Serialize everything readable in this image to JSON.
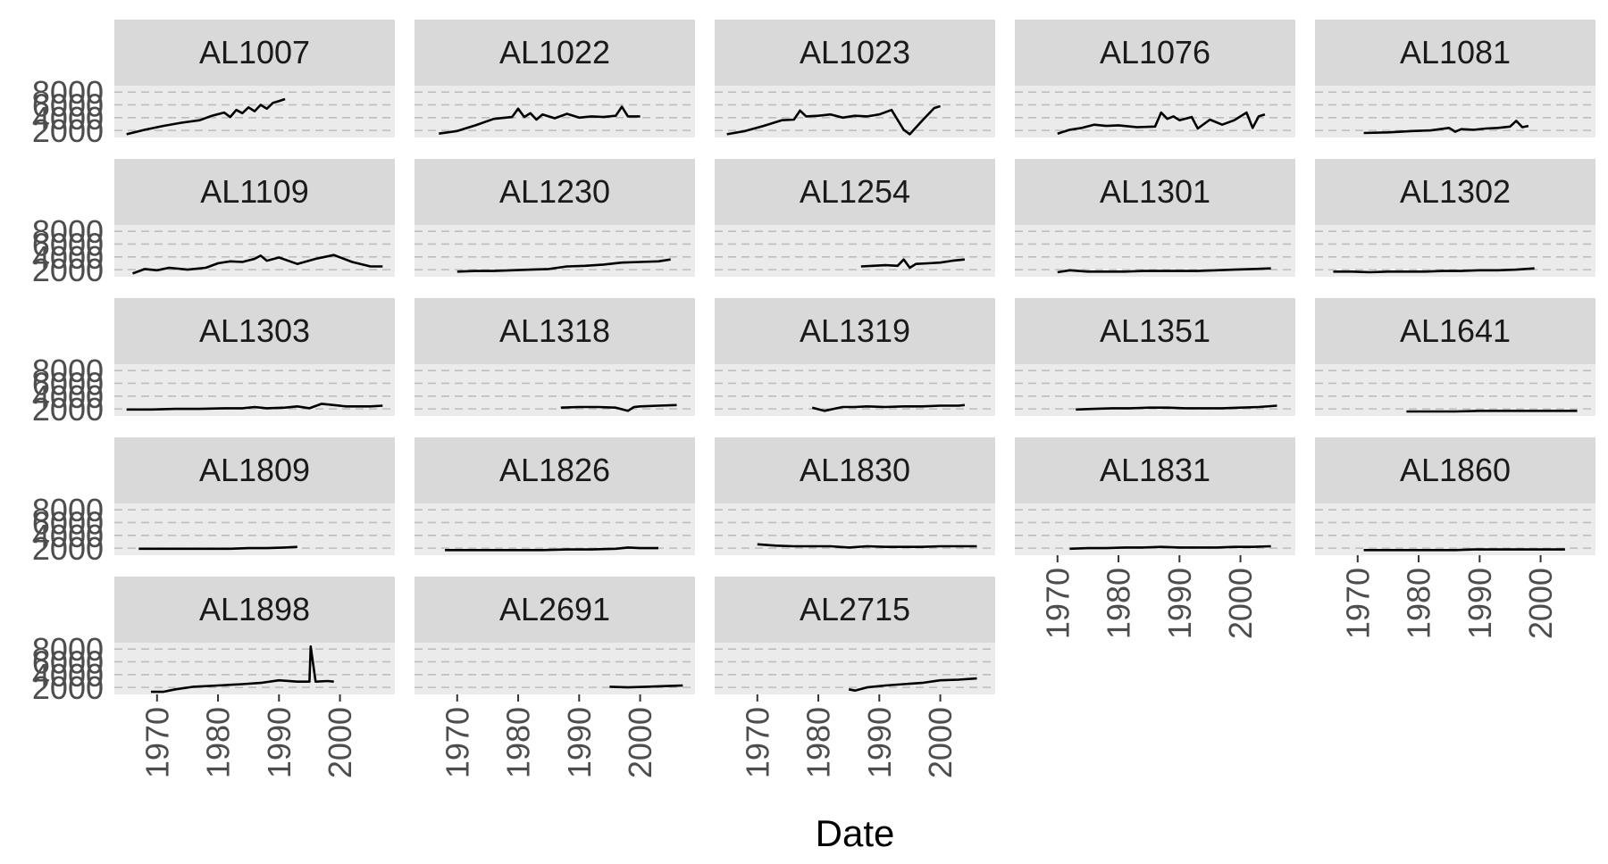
{
  "chart_data": {
    "type": "line",
    "facet_layout": {
      "rows": 5,
      "cols": 5
    },
    "xlabel": "Date",
    "ylabel": "",
    "xlim": [
      1963,
      2009
    ],
    "ylim": [
      900,
      9000
    ],
    "x_ticks": [
      1970,
      1980,
      1990,
      2000
    ],
    "y_ticks": [
      2000,
      4000,
      6000,
      8000
    ],
    "y_tick_labels": [
      "2000",
      "4000",
      "6000",
      "8000"
    ],
    "grid": true,
    "grid_style": "dashed",
    "line_color": "#000000",
    "panel_background": "#ebebeb",
    "strip_background": "#d9d9d9",
    "panels": [
      {
        "name": "AL1007",
        "x": [
          1965,
          1968,
          1971,
          1974,
          1977,
          1979,
          1981,
          1982,
          1983,
          1984,
          1985,
          1986,
          1987,
          1988,
          1989,
          1990,
          1991
        ],
        "y": [
          1400,
          2100,
          2700,
          3200,
          3600,
          4300,
          4800,
          4100,
          5200,
          4700,
          5600,
          5000,
          6000,
          5400,
          6300,
          6600,
          6900
        ]
      },
      {
        "name": "AL1022",
        "x": [
          1967,
          1970,
          1973,
          1976,
          1979,
          1980,
          1981,
          1982,
          1983,
          1984,
          1986,
          1988,
          1990,
          1992,
          1994,
          1996,
          1997,
          1998,
          2000
        ],
        "y": [
          1500,
          1900,
          2800,
          3800,
          4100,
          5400,
          4100,
          4700,
          3700,
          4500,
          3900,
          4600,
          4000,
          4200,
          4100,
          4300,
          5700,
          4200,
          4200
        ]
      },
      {
        "name": "AL1023",
        "x": [
          1965,
          1968,
          1971,
          1974,
          1976,
          1977,
          1978,
          1980,
          1982,
          1984,
          1986,
          1988,
          1990,
          1992,
          1994,
          1995,
          1997,
          1999,
          2000
        ],
        "y": [
          1400,
          1900,
          2700,
          3600,
          3700,
          5100,
          4200,
          4300,
          4500,
          4000,
          4300,
          4200,
          4500,
          5200,
          2100,
          1400,
          3500,
          5500,
          5800
        ]
      },
      {
        "name": "AL1076",
        "x": [
          1970,
          1972,
          1974,
          1976,
          1978,
          1980,
          1983,
          1986,
          1987,
          1988,
          1989,
          1990,
          1992,
          1993,
          1995,
          1997,
          1999,
          2001,
          2002,
          2003,
          2004
        ],
        "y": [
          1500,
          2100,
          2400,
          2900,
          2700,
          2800,
          2500,
          2600,
          4800,
          3800,
          4200,
          3600,
          4100,
          2300,
          3700,
          2900,
          3600,
          4800,
          2400,
          4200,
          4500
        ]
      },
      {
        "name": "AL1081",
        "x": [
          1971,
          1975,
          1979,
          1982,
          1985,
          1986,
          1987,
          1989,
          1991,
          1993,
          1995,
          1996,
          1997,
          1998
        ],
        "y": [
          1600,
          1700,
          1900,
          2000,
          2400,
          1800,
          2200,
          2100,
          2300,
          2400,
          2600,
          3500,
          2500,
          2700
        ]
      },
      {
        "name": "AL1109",
        "x": [
          1966,
          1968,
          1970,
          1972,
          1975,
          1978,
          1980,
          1982,
          1984,
          1986,
          1987,
          1988,
          1990,
          1993,
          1996,
          1999,
          2002,
          2005,
          2007
        ],
        "y": [
          1400,
          2100,
          1900,
          2300,
          2000,
          2300,
          3000,
          3300,
          3200,
          3700,
          4200,
          3400,
          3900,
          2900,
          3700,
          4300,
          3200,
          2500,
          2500
        ]
      },
      {
        "name": "AL1230",
        "x": [
          1970,
          1973,
          1976,
          1979,
          1982,
          1985,
          1988,
          1991,
          1994,
          1997,
          2000,
          2003,
          2005
        ],
        "y": [
          1700,
          1800,
          1800,
          1900,
          2000,
          2100,
          2500,
          2600,
          2800,
          3100,
          3200,
          3300,
          3600
        ]
      },
      {
        "name": "AL1254",
        "x": [
          1987,
          1989,
          1991,
          1993,
          1994,
          1995,
          1996,
          1998,
          2000,
          2002,
          2004
        ],
        "y": [
          2500,
          2600,
          2700,
          2600,
          3600,
          2300,
          2900,
          3000,
          3100,
          3400,
          3600
        ]
      },
      {
        "name": "AL1301",
        "x": [
          1970,
          1972,
          1975,
          1978,
          1981,
          1984,
          1987,
          1990,
          1993,
          1996,
          1999,
          2002,
          2005
        ],
        "y": [
          1600,
          1900,
          1700,
          1700,
          1700,
          1800,
          1800,
          1800,
          1800,
          1900,
          2000,
          2100,
          2200
        ]
      },
      {
        "name": "AL1302",
        "x": [
          1966,
          1969,
          1972,
          1975,
          1978,
          1981,
          1984,
          1987,
          1990,
          1993,
          1996,
          1999
        ],
        "y": [
          1700,
          1700,
          1600,
          1700,
          1700,
          1700,
          1800,
          1800,
          1900,
          1900,
          2000,
          2200
        ]
      },
      {
        "name": "AL1303",
        "x": [
          1965,
          1969,
          1973,
          1977,
          1981,
          1984,
          1986,
          1988,
          1991,
          1993,
          1995,
          1997,
          2001,
          2005,
          2007
        ],
        "y": [
          1900,
          1900,
          2000,
          2000,
          2100,
          2100,
          2300,
          2100,
          2200,
          2400,
          2100,
          2800,
          2400,
          2400,
          2500
        ]
      },
      {
        "name": "AL1318",
        "x": [
          1987,
          1990,
          1993,
          1996,
          1998,
          1999,
          2000,
          2003,
          2006
        ],
        "y": [
          2200,
          2300,
          2300,
          2200,
          1700,
          2300,
          2400,
          2500,
          2600
        ]
      },
      {
        "name": "AL1319",
        "x": [
          1979,
          1981,
          1983,
          1984,
          1986,
          1988,
          1991,
          1994,
          1997,
          2000,
          2003,
          2004
        ],
        "y": [
          2200,
          1700,
          2100,
          2300,
          2300,
          2400,
          2300,
          2400,
          2400,
          2500,
          2500,
          2600
        ]
      },
      {
        "name": "AL1351",
        "x": [
          1973,
          1976,
          1979,
          1982,
          1985,
          1988,
          1991,
          1994,
          1997,
          2000,
          2003,
          2006
        ],
        "y": [
          1900,
          2000,
          2100,
          2100,
          2200,
          2200,
          2100,
          2100,
          2100,
          2200,
          2300,
          2500
        ]
      },
      {
        "name": "AL1641",
        "x": [
          1978,
          1982,
          1986,
          1990,
          1994,
          1998,
          2002,
          2006
        ],
        "y": [
          1600,
          1600,
          1600,
          1700,
          1700,
          1700,
          1700,
          1700
        ]
      },
      {
        "name": "AL1809",
        "x": [
          1967,
          1970,
          1973,
          1976,
          1979,
          1982,
          1985,
          1988,
          1991,
          1993
        ],
        "y": [
          1900,
          1900,
          1900,
          1900,
          1900,
          1900,
          2000,
          2000,
          2100,
          2200
        ]
      },
      {
        "name": "AL1826",
        "x": [
          1968,
          1972,
          1976,
          1980,
          1984,
          1988,
          1992,
          1996,
          1998,
          2000,
          2003
        ],
        "y": [
          1700,
          1700,
          1700,
          1700,
          1700,
          1800,
          1800,
          1900,
          2100,
          2000,
          2000
        ]
      },
      {
        "name": "AL1830",
        "x": [
          1970,
          1973,
          1976,
          1979,
          1982,
          1985,
          1988,
          1991,
          1994,
          1997,
          2000,
          2003,
          2006
        ],
        "y": [
          2600,
          2400,
          2300,
          2300,
          2300,
          2100,
          2300,
          2200,
          2200,
          2200,
          2300,
          2300,
          2300
        ]
      },
      {
        "name": "AL1831",
        "x": [
          1972,
          1975,
          1978,
          1981,
          1984,
          1987,
          1990,
          1993,
          1996,
          1999,
          2002,
          2005
        ],
        "y": [
          1900,
          2000,
          2000,
          2100,
          2100,
          2200,
          2100,
          2100,
          2100,
          2200,
          2200,
          2300
        ]
      },
      {
        "name": "AL1860",
        "x": [
          1971,
          1974,
          1977,
          1980,
          1983,
          1986,
          1989,
          1992,
          1995,
          1998,
          2001,
          2004
        ],
        "y": [
          1700,
          1700,
          1700,
          1700,
          1700,
          1700,
          1800,
          1800,
          1800,
          1800,
          1800,
          1800
        ]
      },
      {
        "name": "AL1898",
        "x": [
          1969,
          1971,
          1973,
          1976,
          1980,
          1984,
          1987,
          1990,
          1993,
          1995,
          1995.2,
          1996,
          1998,
          1999
        ],
        "y": [
          1300,
          1300,
          1700,
          2100,
          2300,
          2500,
          2700,
          3100,
          2900,
          2900,
          8400,
          2900,
          3000,
          2900
        ]
      },
      {
        "name": "AL2691",
        "x": [
          1995,
          1998,
          2001,
          2004,
          2007
        ],
        "y": [
          2100,
          2000,
          2100,
          2200,
          2300
        ]
      },
      {
        "name": "AL2715",
        "x": [
          1985,
          1986,
          1988,
          1991,
          1994,
          1997,
          2000,
          2003,
          2006
        ],
        "y": [
          1700,
          1500,
          2000,
          2300,
          2500,
          2700,
          3100,
          3200,
          3400
        ]
      }
    ]
  }
}
